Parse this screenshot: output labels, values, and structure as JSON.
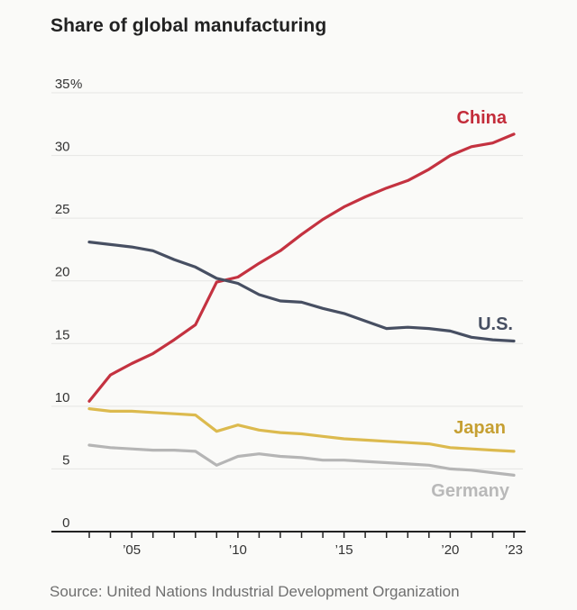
{
  "title": "Share of global manufacturing",
  "source": "Source: United Nations Industrial Development Organization",
  "colors": {
    "background": "#fafaf8",
    "grid": "#e5e5e3",
    "axis": "#222222",
    "tick_text": "#333333",
    "title_text": "#222222",
    "source_text": "#6f6f6f"
  },
  "chart_data": {
    "type": "line",
    "title": "Share of global manufacturing",
    "unit": "%",
    "grid": "horizontal",
    "legend_position": "inline-end-labels",
    "x": [
      2003,
      2004,
      2005,
      2006,
      2007,
      2008,
      2009,
      2010,
      2011,
      2012,
      2013,
      2014,
      2015,
      2016,
      2017,
      2018,
      2019,
      2020,
      2021,
      2022,
      2023
    ],
    "ylim": [
      0,
      35
    ],
    "y_ticks": [
      0,
      5,
      10,
      15,
      20,
      25,
      30,
      35
    ],
    "y_top_tick_suffix": "%",
    "x_labeled_ticks": [
      {
        "year": 2005,
        "label": "’05"
      },
      {
        "year": 2010,
        "label": "’10"
      },
      {
        "year": 2015,
        "label": "’15"
      },
      {
        "year": 2020,
        "label": "’20"
      },
      {
        "year": 2023,
        "label": "’23"
      }
    ],
    "series": [
      {
        "id": "china",
        "name": "China",
        "color": "#c43240",
        "label_color": "#c32c3a",
        "values": [
          10.4,
          12.5,
          13.4,
          14.2,
          15.3,
          16.5,
          19.9,
          20.3,
          21.4,
          22.4,
          23.7,
          24.9,
          25.9,
          26.7,
          27.4,
          28.0,
          28.9,
          30.0,
          30.7,
          31.0,
          31.7
        ]
      },
      {
        "id": "us",
        "name": "U.S.",
        "color": "#474f62",
        "label_color": "#474f62",
        "values": [
          23.1,
          22.9,
          22.7,
          22.4,
          21.7,
          21.1,
          20.2,
          19.8,
          18.9,
          18.4,
          18.3,
          17.8,
          17.4,
          16.8,
          16.2,
          16.3,
          16.2,
          16.0,
          15.5,
          15.3,
          15.2
        ]
      },
      {
        "id": "japan",
        "name": "Japan",
        "color": "#dcba4e",
        "label_color": "#c6a033",
        "values": [
          9.8,
          9.6,
          9.6,
          9.5,
          9.4,
          9.3,
          8.0,
          8.5,
          8.1,
          7.9,
          7.8,
          7.6,
          7.4,
          7.3,
          7.2,
          7.1,
          7.0,
          6.7,
          6.6,
          6.5,
          6.4
        ]
      },
      {
        "id": "germany",
        "name": "Germany",
        "color": "#b5b5b5",
        "label_color": "#b9b9b9",
        "values": [
          6.9,
          6.7,
          6.6,
          6.5,
          6.5,
          6.4,
          5.3,
          6.0,
          6.2,
          6.0,
          5.9,
          5.7,
          5.7,
          5.6,
          5.5,
          5.4,
          5.3,
          5.0,
          4.9,
          4.7,
          4.5
        ]
      }
    ]
  }
}
